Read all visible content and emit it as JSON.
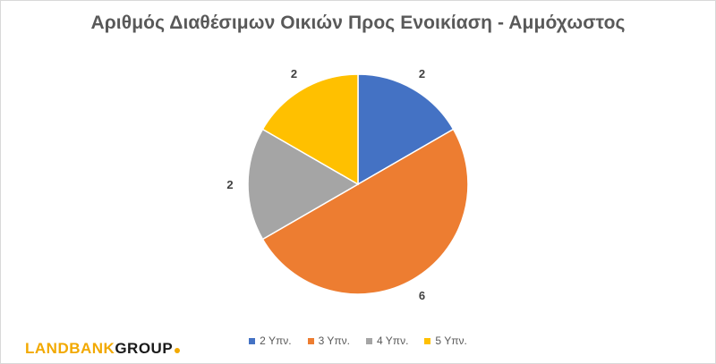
{
  "chart_data": {
    "type": "pie",
    "title": "Αριθμός Διαθέσιμων Οικιών Προς Ενοικίαση - Αμμόχωστος",
    "categories": [
      "2 Υπν.",
      "3 Υπν.",
      "4 Υπν.",
      "5 Υπν."
    ],
    "values": [
      2,
      6,
      2,
      2
    ],
    "colors": [
      "#4472c4",
      "#ed7d31",
      "#a5a5a5",
      "#ffc000"
    ],
    "data_labels": [
      "2",
      "6",
      "2",
      "2"
    ],
    "legend_position": "bottom"
  },
  "logo": {
    "text_land": "LANDBANK",
    "text_group": "GROUP"
  }
}
